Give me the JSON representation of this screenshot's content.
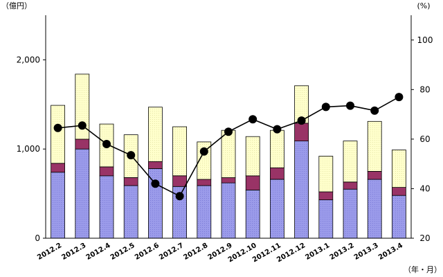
{
  "chart_data": {
    "type": "bar",
    "stacked": true,
    "categories": [
      "2012.2",
      "2012.3",
      "2012.4",
      "2012.5",
      "2012.6",
      "2012.7",
      "2012.8",
      "2012.9",
      "2012.10",
      "2012.11",
      "2012.12",
      "2013.1",
      "2013.2",
      "2013.3",
      "2013.4"
    ],
    "series": [
      {
        "color": "#9b9bea",
        "pattern": "dots",
        "values": [
          740,
          1000,
          700,
          590,
          780,
          580,
          590,
          620,
          540,
          660,
          1090,
          430,
          550,
          660,
          480
        ]
      },
      {
        "color": "#993366",
        "values": [
          100,
          110,
          100,
          90,
          80,
          120,
          70,
          60,
          160,
          130,
          200,
          90,
          80,
          90,
          90
        ]
      },
      {
        "color": "#ffffcc",
        "pattern": "dots",
        "values": [
          650,
          730,
          480,
          480,
          610,
          550,
          420,
          530,
          440,
          420,
          420,
          400,
          460,
          560,
          420
        ]
      }
    ],
    "line": {
      "axis": "right",
      "color": "#000000",
      "marker": "circle",
      "values": [
        64.5,
        65.5,
        58,
        53.5,
        42,
        37,
        55,
        63,
        68,
        64,
        67.5,
        73,
        73.5,
        71.5,
        77
      ]
    },
    "y_left": {
      "unit": "（億円）",
      "ylim": [
        0,
        2500
      ],
      "ticks": [
        0,
        1000,
        2000
      ],
      "tick_labels": [
        "0",
        "1,000",
        "2,000"
      ]
    },
    "y_right": {
      "unit": "(%)",
      "ylim": [
        20,
        110
      ],
      "ticks": [
        20,
        40,
        60,
        80,
        100
      ],
      "tick_labels": [
        "20",
        "40",
        "60",
        "80",
        "100"
      ]
    },
    "x_unit": "（年・月）",
    "grid": false,
    "legend": "none"
  }
}
